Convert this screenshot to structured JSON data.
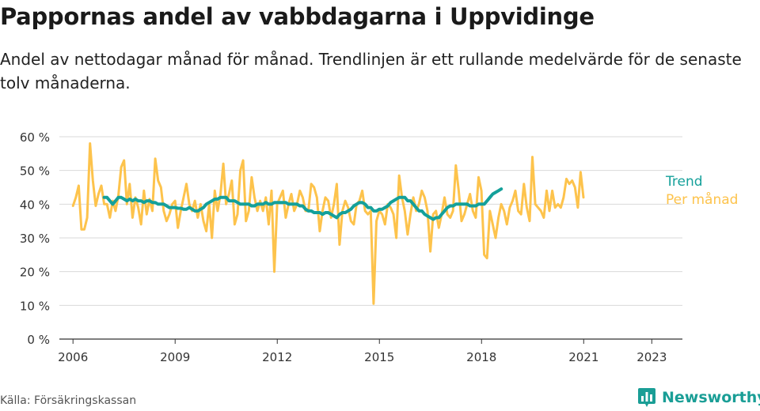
{
  "title": "Pappornas andel av vabbdagarna i Uppvidinge",
  "subtitle": "Andel av nettodagar månad för månad. Trendlinjen är ett rullande medelvärde för de senaste tolv månaderna.",
  "source": "Källa: Försäkringskassan",
  "brand": {
    "name": "Newsworthy",
    "icon": "newsworthy-logo-icon",
    "color": "#1a9e96"
  },
  "chart_data": {
    "type": "line",
    "title": "Pappornas andel av vabbdagarna i Uppvidinge",
    "xlabel": "",
    "ylabel": "",
    "ylim": [
      0,
      60
    ],
    "xlim": [
      2005.6,
      2023.9
    ],
    "grid": true,
    "yticks": [
      0,
      10,
      20,
      30,
      40,
      50,
      60
    ],
    "ytick_labels": [
      "0 %",
      "10 %",
      "20 %",
      "30 %",
      "40 %",
      "50 %",
      "60 %"
    ],
    "xticks": [
      2006,
      2009,
      2012,
      2015,
      2018,
      2021,
      2023
    ],
    "xtick_labels": [
      "2006",
      "2009",
      "2012",
      "2015",
      "2018",
      "2021",
      "2023"
    ],
    "legend_placement": "right, at end of lines",
    "series": [
      {
        "name": "Per månad",
        "color": "#fdc34c",
        "x_start": 2006.0,
        "x_step": 0.0833,
        "values": [
          39.5,
          42,
          45.5,
          32.5,
          32.5,
          36,
          58,
          47,
          39.5,
          43,
          45.5,
          40,
          40,
          36,
          41,
          38,
          42.5,
          51,
          53,
          40,
          46,
          36,
          42,
          39,
          34,
          44,
          37,
          41.5,
          38,
          53.5,
          47,
          45,
          38,
          35,
          37,
          40,
          41,
          33,
          38,
          42,
          46,
          40,
          38,
          41,
          36,
          40,
          35,
          32,
          40,
          30,
          44,
          38,
          43,
          52,
          40,
          43,
          47,
          34,
          37,
          50,
          53,
          35,
          38,
          48,
          42,
          38,
          41,
          38,
          42,
          34,
          44,
          20,
          40,
          42,
          44,
          36,
          40,
          43,
          38,
          40,
          44,
          42,
          38,
          38,
          46,
          45,
          42,
          32,
          38,
          42,
          41,
          36,
          40,
          46,
          28,
          38,
          41,
          39,
          35,
          34,
          40,
          41,
          44,
          38,
          37,
          38,
          10.5,
          35,
          38,
          37,
          34,
          40,
          39,
          37,
          30,
          48.5,
          42,
          38,
          31,
          37,
          42,
          38,
          40,
          44,
          42,
          38,
          26,
          37,
          38,
          33,
          37,
          42,
          37,
          36,
          38,
          51.5,
          44,
          35,
          37,
          40,
          43,
          38,
          36,
          48,
          44,
          25,
          24,
          38,
          34,
          30,
          36,
          40,
          38,
          34,
          39,
          41,
          44,
          38,
          37,
          46,
          39,
          35,
          54,
          40,
          39,
          38,
          36,
          44,
          38,
          44,
          39,
          40,
          39,
          42,
          47.5,
          46,
          47,
          45,
          39,
          49.5,
          42
        ]
      },
      {
        "name": "Trend",
        "color": "#14a09a",
        "x_start": 2006.917,
        "x_step": 0.0833,
        "values": [
          42,
          42,
          41,
          40,
          41,
          42,
          42,
          41.5,
          41,
          41.5,
          41,
          41.5,
          41,
          41,
          40.5,
          41,
          41,
          40.5,
          40.5,
          40,
          40,
          40,
          39.5,
          39,
          39,
          39,
          38.8,
          38.8,
          38.5,
          38.5,
          39,
          38.5,
          38,
          38,
          38.5,
          39,
          40,
          40.5,
          41,
          41.5,
          41.5,
          42,
          42,
          42,
          41,
          41,
          41,
          40.5,
          40,
          40,
          40,
          40,
          39.5,
          39.5,
          40,
          40,
          40,
          40.5,
          40,
          40,
          40.5,
          40.5,
          40.5,
          40.5,
          40.5,
          40,
          40,
          40,
          40,
          39.5,
          39.5,
          38.5,
          38,
          38,
          37.5,
          37.5,
          37.5,
          37,
          37.5,
          37.5,
          37,
          36.5,
          36,
          37,
          37.5,
          37.5,
          38,
          38.5,
          39.5,
          40,
          40.5,
          40.5,
          40,
          39,
          39,
          38,
          38,
          38.5,
          38.5,
          39,
          39.5,
          40.5,
          41,
          41.5,
          42,
          42,
          42,
          41,
          41,
          40,
          39,
          38,
          38,
          37,
          36.5,
          36,
          35.5,
          36,
          36,
          37,
          38,
          39,
          39.5,
          39.5,
          40,
          40,
          40,
          40,
          40,
          39.5,
          39.5,
          39.5,
          40,
          40,
          40,
          41,
          42,
          43,
          43.5,
          44,
          44.5
        ]
      }
    ]
  }
}
